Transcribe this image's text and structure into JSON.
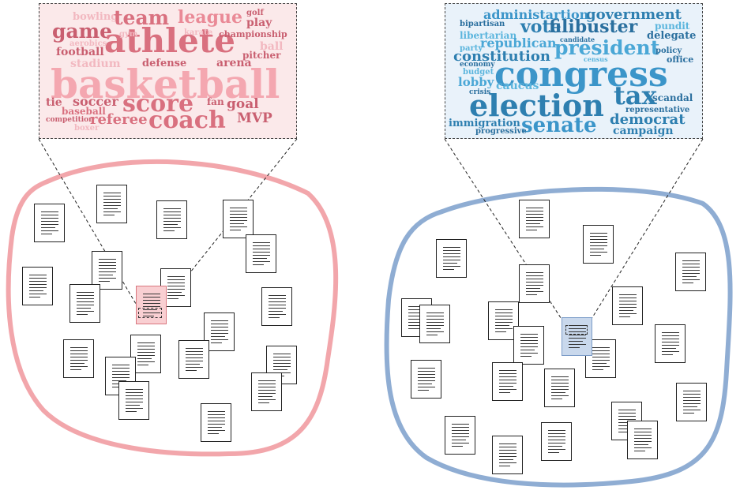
{
  "colors": {
    "sports_blob": "#f2a6ab",
    "politics_blob": "#8fadd3",
    "sports_cloud_bg": "#fbe9ea",
    "politics_cloud_bg": "#e9f2fa",
    "sports_words": [
      "#f4a7b0",
      "#ea8a97",
      "#d9707f",
      "#c95f70",
      "#f2b8c0"
    ],
    "politics_words": [
      "#3b95c9",
      "#4aa7d6",
      "#2e7fb0",
      "#5bb5dd",
      "#2a6f9e"
    ]
  },
  "sports_cloud": {
    "words": [
      "bowling",
      "team",
      "league",
      "golf",
      "game",
      "athlete",
      "play",
      "aerobics",
      "gym",
      "karate",
      "championship",
      "football",
      "ball",
      "stadium",
      "defense",
      "arena",
      "pitcher",
      "basketball",
      "tie",
      "soccer",
      "score",
      "fan",
      "goal",
      "baseball",
      "competition",
      "referee",
      "coach",
      "MVP",
      "boxer"
    ]
  },
  "politics_cloud": {
    "words": [
      "administartion",
      "government",
      "bipartisan",
      "vote",
      "filibuster",
      "pundit",
      "libertarian",
      "republican",
      "president",
      "delegate",
      "party",
      "candidate",
      "constitution",
      "policy",
      "economy",
      "census",
      "office",
      "budget",
      "congress",
      "lobby",
      "caucus",
      "crisis",
      "election",
      "tax",
      "representative",
      "scandal",
      "immigration",
      "senate",
      "democrat",
      "progressive",
      "campaign"
    ]
  },
  "sports_docs_count": 22,
  "politics_docs_count": 24
}
